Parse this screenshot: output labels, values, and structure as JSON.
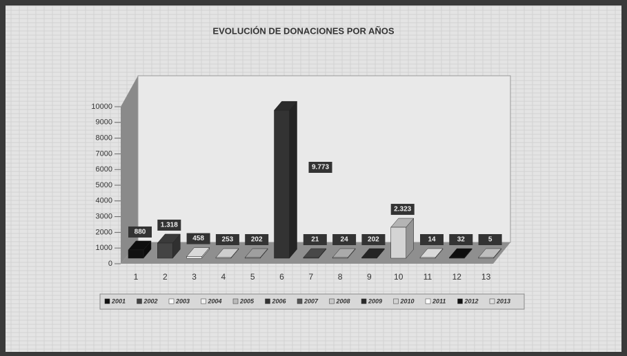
{
  "chart_data": {
    "type": "bar3d",
    "title": "EVOLUCIÓN DE DONACIONES POR AÑOS",
    "categories": [
      "1",
      "2",
      "3",
      "4",
      "5",
      "6",
      "7",
      "8",
      "9",
      "10",
      "11",
      "12",
      "13"
    ],
    "values": [
      880,
      1318,
      458,
      253,
      202,
      9773,
      21,
      24,
      202,
      2323,
      14,
      32,
      5
    ],
    "value_labels": [
      "880",
      "1.318",
      "458",
      "253",
      "202",
      "9.773",
      "21",
      "24",
      "202",
      "2.323",
      "14",
      "32",
      "5"
    ],
    "colors": [
      "#111111",
      "#444444",
      "#ffffff",
      "#f2f2f2",
      "#bbbbbb",
      "#333333",
      "#555555",
      "#c8c8c8",
      "#2a2a2a",
      "#d4d4d4",
      "#ffffff",
      "#111111",
      "#e0e0e0"
    ],
    "legend": [
      "2001",
      "2002",
      "2003",
      "2004",
      "2005",
      "2006",
      "2007",
      "2008",
      "2009",
      "2010",
      "2011",
      "2012",
      "2013"
    ],
    "ylim": [
      0,
      10000
    ],
    "yticks": [
      0,
      1000,
      2000,
      3000,
      4000,
      5000,
      6000,
      7000,
      8000,
      9000,
      10000
    ]
  }
}
